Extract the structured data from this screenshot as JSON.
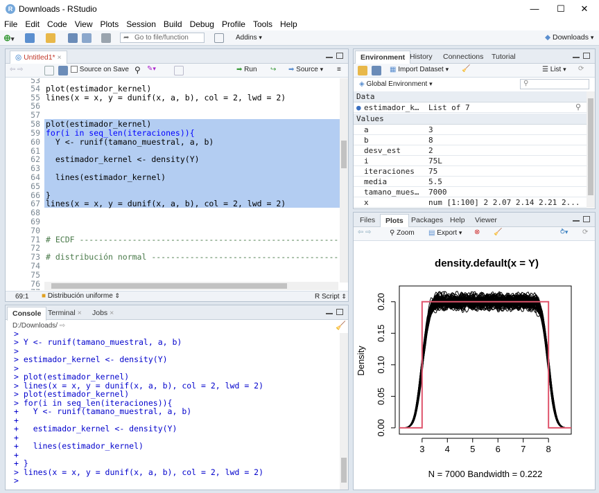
{
  "window": {
    "title": "Downloads - RStudio",
    "app_icon_letter": "R",
    "minimize": "—",
    "maximize": "☐",
    "close": "✕"
  },
  "menu": [
    "File",
    "Edit",
    "Code",
    "View",
    "Plots",
    "Session",
    "Build",
    "Debug",
    "Profile",
    "Tools",
    "Help"
  ],
  "toolbar": {
    "goto_placeholder": "Go to file/function",
    "addins": "Addins",
    "project": "Downloads"
  },
  "editor": {
    "tab": "Untitled1*",
    "source_on_save": "Source on Save",
    "run": "Run",
    "source": "Source",
    "lines": [
      {
        "n": "53",
        "text": ""
      },
      {
        "n": "54",
        "text": "plot(estimador_kernel)"
      },
      {
        "n": "55",
        "text": "lines(x = x, y = dunif(x, a, b), col = 2, lwd = 2)"
      },
      {
        "n": "56",
        "text": ""
      },
      {
        "n": "57",
        "text": ""
      },
      {
        "n": "58",
        "text": "plot(estimador_kernel)"
      },
      {
        "n": "59",
        "text": "for(i in seq_len(iteraciones)){"
      },
      {
        "n": "60",
        "text": "  Y <- runif(tamano_muestral, a, b)"
      },
      {
        "n": "61",
        "text": ""
      },
      {
        "n": "62",
        "text": "  estimador_kernel <- density(Y)"
      },
      {
        "n": "63",
        "text": ""
      },
      {
        "n": "64",
        "text": "  lines(estimador_kernel)"
      },
      {
        "n": "65",
        "text": ""
      },
      {
        "n": "66",
        "text": "}"
      },
      {
        "n": "67",
        "text": "lines(x = x, y = dunif(x, a, b), col = 2, lwd = 2)"
      },
      {
        "n": "68",
        "text": ""
      },
      {
        "n": "69",
        "text": ""
      },
      {
        "n": "70",
        "text": ""
      },
      {
        "n": "71",
        "text": "# ECDF -------------------------------------------------------"
      },
      {
        "n": "72",
        "text": ""
      },
      {
        "n": "73",
        "text": "# distribución normal ----------------------------------------"
      },
      {
        "n": "74",
        "text": ""
      },
      {
        "n": "75",
        "text": ""
      },
      {
        "n": "76",
        "text": ""
      },
      {
        "n": "77",
        "text": ""
      }
    ],
    "status_pos": "69:1",
    "status_section": "Distribución uniforme",
    "status_type": "R Script"
  },
  "console": {
    "tabs": [
      "Console",
      "Terminal",
      "Jobs"
    ],
    "path": "D:/Downloads/",
    "lines": [
      "> Y <- runif(tamano_muestral, a, b)",
      ">",
      "> estimador_kernel <- density(Y)",
      ">",
      "> plot(estimador_kernel)",
      "> lines(x = x, y = dunif(x, a, b), col = 2, lwd = 2)",
      "> plot(estimador_kernel)",
      "> for(i in seq_len(iteraciones)){",
      "+   Y <- runif(tamano_muestral, a, b)",
      "+",
      "+   estimador_kernel <- density(Y)",
      "+",
      "+   lines(estimador_kernel)",
      "+",
      "+ }",
      "> lines(x = x, y = dunif(x, a, b), col = 2, lwd = 2)",
      ">"
    ]
  },
  "environment": {
    "tabs": [
      "Environment",
      "History",
      "Connections",
      "Tutorial"
    ],
    "import_dataset": "Import Dataset",
    "list_view": "List",
    "scope": "Global Environment",
    "data_header": "Data",
    "values_header": "Values",
    "data": [
      {
        "name": "estimador_k…",
        "value": "List of 7"
      }
    ],
    "values": [
      {
        "name": "a",
        "value": "3"
      },
      {
        "name": "b",
        "value": "8"
      },
      {
        "name": "desv_est",
        "value": "2"
      },
      {
        "name": "i",
        "value": "75L"
      },
      {
        "name": "iteraciones",
        "value": "75"
      },
      {
        "name": "media",
        "value": "5.5"
      },
      {
        "name": "tamano_mues…",
        "value": "7000"
      },
      {
        "name": "x",
        "value": "num [1:100] 2 2.07 2.14 2.21 2..."
      }
    ]
  },
  "plots_pane": {
    "tabs": [
      "Files",
      "Plots",
      "Packages",
      "Help",
      "Viewer"
    ],
    "zoom": "Zoom",
    "export": "Export"
  },
  "chart_data": {
    "type": "line",
    "title": "density.default(x = Y)",
    "xlabel": "N = 7000   Bandwidth = 0.222",
    "ylabel": "Density",
    "xlim": [
      2.1,
      8.9
    ],
    "ylim": [
      -0.01,
      0.225
    ],
    "x_ticks": [
      "3",
      "4",
      "5",
      "6",
      "7",
      "8"
    ],
    "y_ticks": [
      "0.00",
      "0.05",
      "0.10",
      "0.15",
      "0.20"
    ],
    "series": [
      {
        "color": "#000000",
        "line_count": 75,
        "support": [
          3,
          8
        ],
        "plateau": 0.2
      },
      {
        "color": "#df536b",
        "x": [
          2.1,
          3,
          3,
          8,
          8,
          8.9
        ],
        "y": [
          0,
          0,
          0.2,
          0.2,
          0,
          0
        ]
      }
    ]
  }
}
